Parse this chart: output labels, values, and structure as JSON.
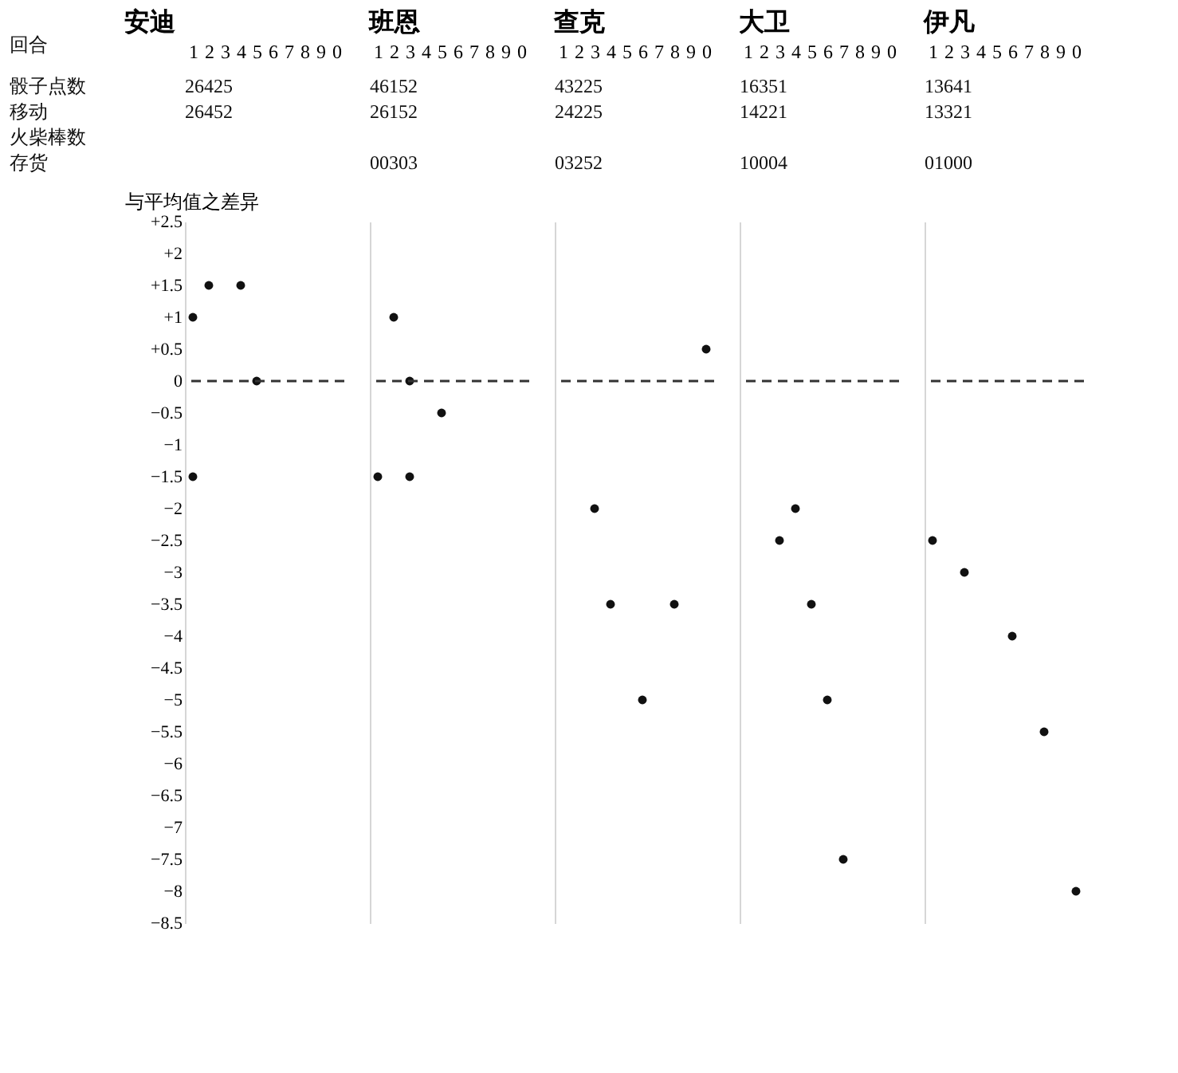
{
  "chart_data": [
    {
      "type": "other",
      "annotations": [
        "回合",
        "骰子点数",
        "移动",
        "火柴棒数",
        "存货"
      ]
    },
    {
      "type": "scatter",
      "title": "安迪",
      "ylabel": "与平均值之差异",
      "categories": [
        "1",
        "2",
        "3",
        "4",
        "5",
        "6",
        "7",
        "8",
        "9",
        "0"
      ],
      "annotations": [
        "26425",
        "26452"
      ],
      "series": [
        {
          "color": "#111111",
          "x": [
            "1",
            "1",
            "2",
            "4",
            "5"
          ],
          "values": [
            1,
            -1.5,
            1.5,
            1.5,
            0
          ]
        }
      ],
      "ylim": [
        -8.5,
        2.5
      ],
      "yticks": [
        {
          "value": 2.5,
          "label": "+2.5"
        },
        {
          "value": 2,
          "label": "+2"
        },
        {
          "value": 1.5,
          "label": "+1.5"
        },
        {
          "value": 1,
          "label": "+1"
        },
        {
          "value": 0.5,
          "label": "+0.5"
        },
        0,
        {
          "value": -0.5,
          "label": "−0.5"
        },
        {
          "value": -1,
          "label": "−1"
        },
        {
          "value": -1.5,
          "label": "−1.5"
        },
        {
          "value": -2,
          "label": "−2"
        },
        {
          "value": -2.5,
          "label": "−2.5"
        },
        {
          "value": -3,
          "label": "−3"
        },
        {
          "value": -3.5,
          "label": "−3.5"
        },
        {
          "value": -4,
          "label": "−4"
        },
        {
          "value": -4.5,
          "label": "−4.5"
        },
        {
          "value": -5,
          "label": "−5"
        },
        {
          "value": -5.5,
          "label": "−5.5"
        },
        {
          "value": -6,
          "label": "−6"
        },
        {
          "value": -6.5,
          "label": "−6.5"
        },
        {
          "value": -7,
          "label": "−7"
        },
        {
          "value": -7.5,
          "label": "−7.5"
        },
        {
          "value": -8,
          "label": "−8"
        },
        {
          "value": -8.5,
          "label": "−8.5"
        }
      ],
      "ref_lines": [
        {
          "axis": "y",
          "value": 0,
          "color": "#333333",
          "line_style": "dashed"
        }
      ],
      "marker": "circle"
    },
    {
      "type": "scatter",
      "title": "班恩",
      "categories": [
        "1",
        "2",
        "3",
        "4",
        "5",
        "6",
        "7",
        "8",
        "9",
        "0"
      ],
      "annotations": [
        "46152",
        "26152",
        "00303"
      ],
      "series": [
        {
          "color": "#111111",
          "x": [
            "1",
            "2",
            "3",
            "3",
            "5"
          ],
          "values": [
            -1.5,
            1,
            0,
            -1.5,
            -0.5
          ]
        }
      ],
      "ylim": [
        -8.5,
        2.5
      ],
      "tick_labels": "x",
      "ref_lines": [
        {
          "axis": "y",
          "value": 0,
          "color": "#333333",
          "line_style": "dashed"
        }
      ],
      "marker": "circle"
    },
    {
      "type": "scatter",
      "title": "查克",
      "categories": [
        "1",
        "2",
        "3",
        "4",
        "5",
        "6",
        "7",
        "8",
        "9",
        "0"
      ],
      "annotations": [
        "43225",
        "24225",
        "03252"
      ],
      "series": [
        {
          "color": "#111111",
          "x": [
            "3",
            "4",
            "6",
            "8",
            "0"
          ],
          "values": [
            -2,
            -3.5,
            -5,
            -3.5,
            0.5
          ]
        }
      ],
      "ylim": [
        -8.5,
        2.5
      ],
      "tick_labels": "x",
      "ref_lines": [
        {
          "axis": "y",
          "value": 0,
          "color": "#333333",
          "line_style": "dashed"
        }
      ],
      "marker": "circle"
    },
    {
      "type": "scatter",
      "title": "大卫",
      "categories": [
        "1",
        "2",
        "3",
        "4",
        "5",
        "6",
        "7",
        "8",
        "9",
        "0"
      ],
      "annotations": [
        "16351",
        "14221",
        "10004"
      ],
      "series": [
        {
          "color": "#111111",
          "x": [
            "3",
            "4",
            "5",
            "6",
            "7"
          ],
          "values": [
            -2.5,
            -2,
            -3.5,
            -5,
            -7.5
          ]
        }
      ],
      "ylim": [
        -8.5,
        2.5
      ],
      "tick_labels": "x",
      "ref_lines": [
        {
          "axis": "y",
          "value": 0,
          "color": "#333333",
          "line_style": "dashed"
        }
      ],
      "marker": "circle"
    },
    {
      "type": "scatter",
      "title": "伊凡",
      "categories": [
        "1",
        "2",
        "3",
        "4",
        "5",
        "6",
        "7",
        "8",
        "9",
        "0"
      ],
      "annotations": [
        "13641",
        "13321",
        "01000"
      ],
      "series": [
        {
          "color": "#111111",
          "x": [
            "1",
            "3",
            "6",
            "8",
            "0"
          ],
          "values": [
            -2.5,
            -3,
            -4,
            -5.5,
            -8
          ]
        }
      ],
      "ylim": [
        -8.5,
        2.5
      ],
      "tick_labels": "x",
      "ref_lines": [
        {
          "axis": "y",
          "value": 0,
          "color": "#333333",
          "line_style": "dashed"
        }
      ],
      "marker": "circle"
    }
  ]
}
